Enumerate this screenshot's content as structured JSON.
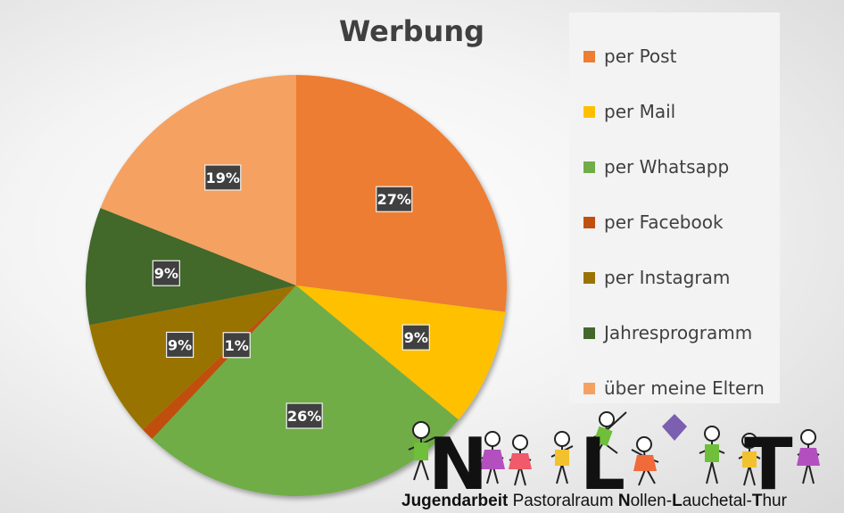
{
  "chart_data": {
    "type": "pie",
    "title": "Werbung",
    "categories": [
      "per Post",
      "per Mail",
      "per Whatsapp",
      "per Facebook",
      "per Instagram",
      "Jahresprogramm",
      "über meine Eltern"
    ],
    "values": [
      27,
      9,
      26,
      1,
      9,
      9,
      19
    ],
    "labels": [
      "27%",
      "9%",
      "26%",
      "1%",
      "9%",
      "9%",
      "19%"
    ],
    "colors": [
      "#ED7D31",
      "#FFC000",
      "#70AD47",
      "#C0500F",
      "#997300",
      "#43682B",
      "#F4A162"
    ],
    "legend_position": "right"
  },
  "logo": {
    "letters": [
      "N",
      "L",
      "T"
    ],
    "line_parts": [
      "Jugendarbeit",
      " Pastoralraum ",
      "N",
      "ollen-",
      "L",
      "auchetal-",
      "T",
      "hur"
    ]
  }
}
